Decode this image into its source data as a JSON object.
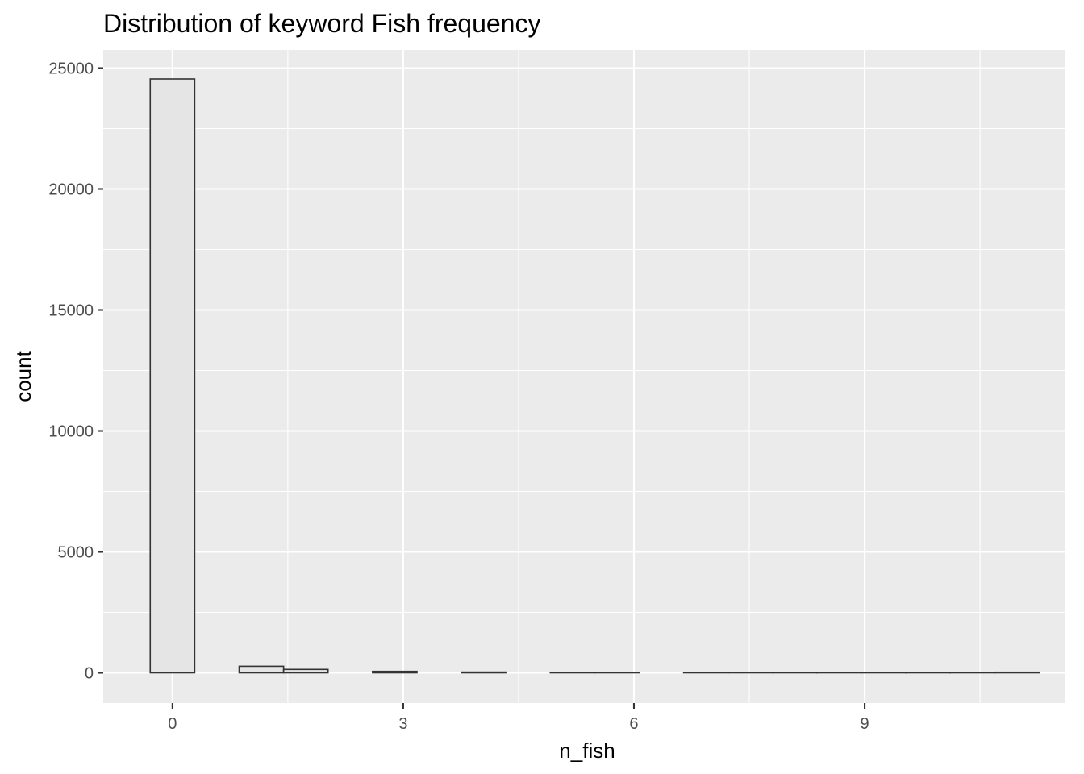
{
  "chart_data": {
    "type": "bar",
    "title": "Distribution of keyword Fish frequency",
    "xlabel": "n_fish",
    "ylabel": "count",
    "xlim": [
      -0.9,
      11.6
    ],
    "ylim": [
      -1250,
      25750
    ],
    "x_ticks": [
      0,
      3,
      6,
      9
    ],
    "x_tick_labels": [
      "0",
      "3",
      "6",
      "9"
    ],
    "y_ticks": [
      0,
      5000,
      10000,
      15000,
      20000,
      25000
    ],
    "y_tick_labels": [
      "0",
      "5000",
      "10000",
      "15000",
      "20000",
      "25000"
    ],
    "bin_width": 0.578,
    "bins": [
      {
        "x_start": -0.289,
        "x_end": 0.289,
        "count": 24550
      },
      {
        "x_start": 0.867,
        "x_end": 1.445,
        "count": 270
      },
      {
        "x_start": 1.445,
        "x_end": 2.023,
        "count": 140
      },
      {
        "x_start": 2.601,
        "x_end": 3.179,
        "count": 60
      },
      {
        "x_start": 3.756,
        "x_end": 4.334,
        "count": 30
      },
      {
        "x_start": 4.912,
        "x_end": 5.49,
        "count": 20
      },
      {
        "x_start": 5.49,
        "x_end": 6.068,
        "count": 20
      },
      {
        "x_start": 6.646,
        "x_end": 7.224,
        "count": 20
      },
      {
        "x_start": 7.224,
        "x_end": 7.802,
        "count": 5
      },
      {
        "x_start": 7.802,
        "x_end": 8.38,
        "count": 0
      },
      {
        "x_start": 8.38,
        "x_end": 8.958,
        "count": 0
      },
      {
        "x_start": 8.958,
        "x_end": 9.536,
        "count": 0
      },
      {
        "x_start": 9.536,
        "x_end": 10.114,
        "count": 0
      },
      {
        "x_start": 10.114,
        "x_end": 10.692,
        "count": 0
      },
      {
        "x_start": 10.692,
        "x_end": 11.27,
        "count": 25
      }
    ],
    "grid": true,
    "legend": "none",
    "colors": {
      "panel": "#ebebeb",
      "grid": "#ffffff",
      "bar_fill": "#e5e5e5",
      "bar_outline": "#333333",
      "tick_label": "#4d4d4d"
    }
  }
}
